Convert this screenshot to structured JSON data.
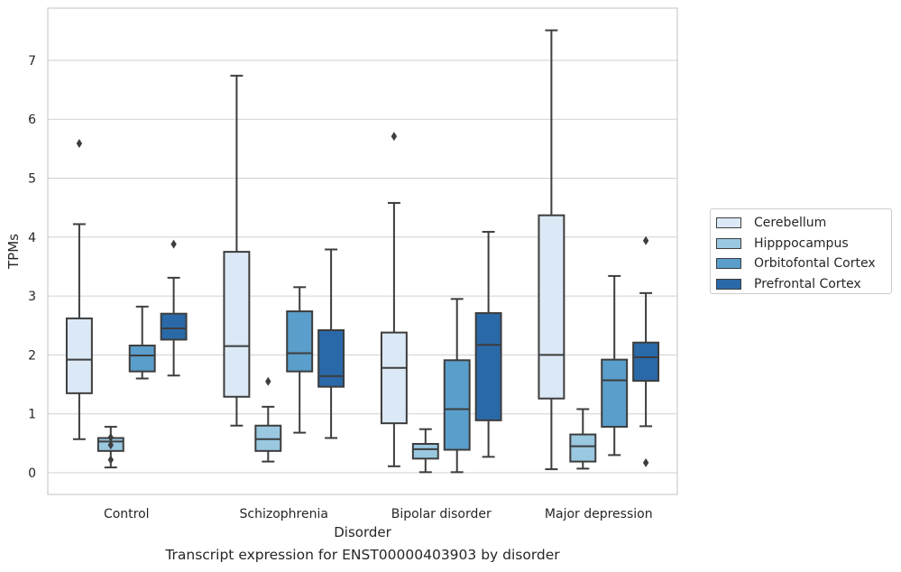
{
  "chart_data": {
    "type": "box",
    "caption": "Transcript expression for ENST00000403903 by disorder",
    "xlabel": "Disorder",
    "ylabel": "TPMs",
    "ylim": [
      -0.35,
      7.9
    ],
    "yticks": [
      "0",
      "1",
      "2",
      "3",
      "4",
      "5",
      "6",
      "7"
    ],
    "grid": true,
    "legend_position": "right",
    "categories": [
      "Control",
      "Schizophrenia",
      "Bipolar disorder",
      "Major depression"
    ],
    "series": [
      {
        "name": "Cerebellum",
        "color": "#dbe9f6",
        "boxes": [
          {
            "whislo": 0.57,
            "q1": 1.35,
            "med": 1.92,
            "q3": 2.62,
            "whishi": 4.22,
            "fliers": [
              5.59
            ]
          },
          {
            "whislo": 0.8,
            "q1": 1.29,
            "med": 2.15,
            "q3": 3.75,
            "whishi": 6.74,
            "fliers": []
          },
          {
            "whislo": 0.11,
            "q1": 0.84,
            "med": 1.78,
            "q3": 2.38,
            "whishi": 4.58,
            "fliers": [
              5.71
            ]
          },
          {
            "whislo": 0.06,
            "q1": 1.26,
            "med": 2.0,
            "q3": 4.37,
            "whishi": 7.51,
            "fliers": []
          }
        ]
      },
      {
        "name": "Hipppocampus",
        "color": "#9ac8e0",
        "boxes": [
          {
            "whislo": 0.09,
            "q1": 0.37,
            "med": 0.53,
            "q3": 0.59,
            "whishi": 0.78,
            "fliers": [
              0.6,
              0.47,
              0.22
            ]
          },
          {
            "whislo": 0.19,
            "q1": 0.37,
            "med": 0.57,
            "q3": 0.8,
            "whishi": 1.12,
            "fliers": [
              1.55
            ]
          },
          {
            "whislo": 0.01,
            "q1": 0.24,
            "med": 0.4,
            "q3": 0.49,
            "whishi": 0.74,
            "fliers": []
          },
          {
            "whislo": 0.07,
            "q1": 0.19,
            "med": 0.45,
            "q3": 0.65,
            "whishi": 1.08,
            "fliers": []
          }
        ]
      },
      {
        "name": "Orbitofontal Cortex",
        "color": "#5a9ecb",
        "boxes": [
          {
            "whislo": 1.6,
            "q1": 1.72,
            "med": 1.99,
            "q3": 2.16,
            "whishi": 2.82,
            "fliers": []
          },
          {
            "whislo": 0.68,
            "q1": 1.72,
            "med": 2.03,
            "q3": 2.74,
            "whishi": 3.15,
            "fliers": []
          },
          {
            "whislo": 0.01,
            "q1": 0.39,
            "med": 1.08,
            "q3": 1.91,
            "whishi": 2.95,
            "fliers": []
          },
          {
            "whislo": 0.3,
            "q1": 0.78,
            "med": 1.57,
            "q3": 1.92,
            "whishi": 3.34,
            "fliers": []
          }
        ]
      },
      {
        "name": "Prefrontal Cortex",
        "color": "#2a69a8",
        "boxes": [
          {
            "whislo": 1.65,
            "q1": 2.26,
            "med": 2.45,
            "q3": 2.7,
            "whishi": 3.31,
            "fliers": [
              3.88
            ]
          },
          {
            "whislo": 0.59,
            "q1": 1.46,
            "med": 1.64,
            "q3": 2.42,
            "whishi": 3.79,
            "fliers": []
          },
          {
            "whislo": 0.27,
            "q1": 0.89,
            "med": 2.17,
            "q3": 2.71,
            "whishi": 4.09,
            "fliers": []
          },
          {
            "whislo": 0.79,
            "q1": 1.56,
            "med": 1.96,
            "q3": 2.21,
            "whishi": 3.05,
            "fliers": [
              3.94,
              0.17
            ]
          }
        ]
      }
    ]
  }
}
